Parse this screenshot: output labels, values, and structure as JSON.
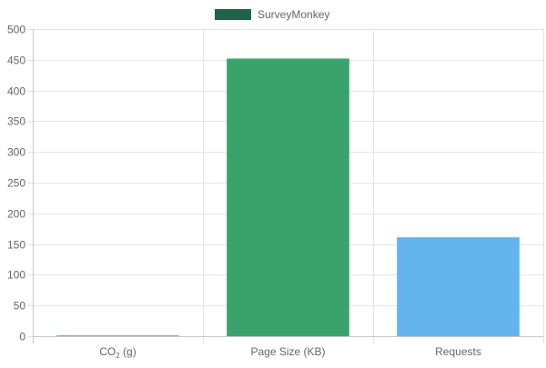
{
  "chart_data": {
    "type": "bar",
    "legend": {
      "placement": "top-center",
      "entries": [
        {
          "label": "SurveyMonkey",
          "color": "#216349"
        }
      ]
    },
    "categories": [
      {
        "label": "CO2 (g)",
        "base": "CO",
        "sub": "2",
        "suffix": " (g)"
      },
      {
        "label": "Page Size (KB)",
        "base": "Page Size (KB)",
        "sub": "",
        "suffix": ""
      },
      {
        "label": "Requests",
        "base": "Requests",
        "sub": "",
        "suffix": ""
      }
    ],
    "series": [
      {
        "name": "SurveyMonkey",
        "values": [
          0.3,
          452,
          161
        ],
        "colors": [
          "#216349",
          "#3aa36b",
          "#63b4ec"
        ]
      }
    ],
    "ylim": [
      0,
      500
    ],
    "yticks": [
      0,
      50,
      100,
      150,
      200,
      250,
      300,
      350,
      400,
      450,
      500
    ],
    "grid": true,
    "colors": {
      "grid": "#e5e5e5",
      "axis": "#c8c8c8",
      "tick_text": "#666666"
    }
  }
}
